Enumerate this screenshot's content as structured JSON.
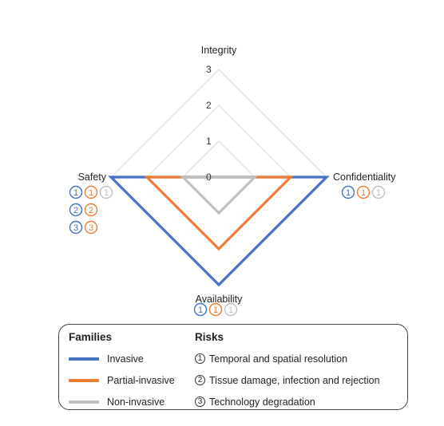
{
  "chart_data": {
    "type": "radar",
    "axes": [
      "Integrity",
      "Confidentiality",
      "Availability",
      "Safety"
    ],
    "tick_labels": [
      "0",
      "1",
      "2",
      "3"
    ],
    "rmax": 3,
    "series": [
      {
        "name": "Invasive",
        "color": "#4472c4",
        "values": [
          0,
          3,
          3,
          3
        ]
      },
      {
        "name": "Partial-invasive",
        "color": "#ed7d31",
        "values": [
          0,
          2,
          2,
          2
        ]
      },
      {
        "name": "Non-invasive",
        "color": "#bfbfbf",
        "values": [
          0,
          1,
          1,
          1
        ]
      }
    ],
    "grid_color": "#d9d9d9",
    "annotations": {
      "Integrity": [],
      "Confidentiality": [
        [
          "1",
          "1",
          "1"
        ]
      ],
      "Availability": [
        [
          "1",
          "1",
          "1"
        ]
      ],
      "Safety": [
        [
          "1",
          "1",
          "1"
        ],
        [
          "2",
          "2"
        ],
        [
          "3",
          "3"
        ]
      ]
    }
  },
  "legend": {
    "families_heading": "Families",
    "risks_heading": "Risks",
    "families": [
      {
        "label": "Invasive",
        "color": "#4472c4"
      },
      {
        "label": "Partial-invasive",
        "color": "#ed7d31"
      },
      {
        "label": "Non-invasive",
        "color": "#bfbfbf"
      }
    ],
    "risks": [
      {
        "num": "1",
        "label": "Temporal and spatial resolution"
      },
      {
        "num": "2",
        "label": "Tissue damage, infection and rejection"
      },
      {
        "num": "3",
        "label": "Technology degradation"
      }
    ]
  }
}
